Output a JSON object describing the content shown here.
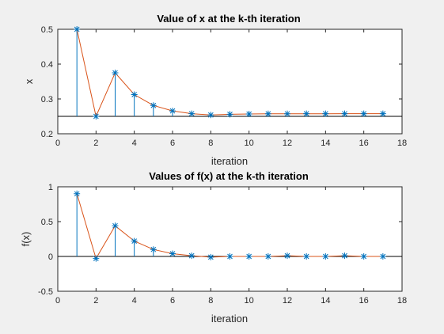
{
  "chart_data": [
    {
      "type": "line",
      "title": "Value of x at the k-th iteration",
      "xlabel": "iteration",
      "ylabel": "x",
      "xlim": [
        0,
        18
      ],
      "ylim": [
        0.2,
        0.5
      ],
      "xticks": [
        0,
        2,
        4,
        6,
        8,
        10,
        12,
        14,
        16,
        18
      ],
      "yticks": [
        0.2,
        0.3,
        0.4,
        0.5
      ],
      "ytick_labels": [
        "0.2",
        "0.3",
        "0.4",
        "0.5"
      ],
      "grid": false,
      "x": [
        1,
        2,
        3,
        4,
        5,
        6,
        7,
        8,
        9,
        10,
        11,
        12,
        13,
        14,
        15,
        16,
        17
      ],
      "series": [
        {
          "style": "stem",
          "marker": "*",
          "baseline": 0.25,
          "values": [
            0.5,
            0.25,
            0.375,
            0.3125,
            0.2813,
            0.2656,
            0.2578,
            0.2539,
            0.2559,
            0.2568,
            0.2573,
            0.2575,
            0.2576,
            0.2576,
            0.2577,
            0.2577,
            0.2577
          ]
        },
        {
          "style": "line",
          "values": [
            0.5,
            0.25,
            0.375,
            0.3125,
            0.2813,
            0.2656,
            0.2578,
            0.2539,
            0.2559,
            0.2568,
            0.2573,
            0.2575,
            0.2576,
            0.2576,
            0.2577,
            0.2577,
            0.2577
          ]
        }
      ],
      "reference_line": {
        "y": 0.25
      }
    },
    {
      "type": "line",
      "title": "Values of f(x) at the k-th iteration",
      "xlabel": "iteration",
      "ylabel": "f(x)",
      "xlim": [
        0,
        18
      ],
      "ylim": [
        -0.5,
        1
      ],
      "xticks": [
        0,
        2,
        4,
        6,
        8,
        10,
        12,
        14,
        16,
        18
      ],
      "yticks": [
        -0.5,
        0,
        0.5,
        1
      ],
      "ytick_labels": [
        "-0.5",
        "0",
        "0.5",
        "1"
      ],
      "grid": false,
      "x": [
        1,
        2,
        3,
        4,
        5,
        6,
        7,
        8,
        9,
        10,
        11,
        12,
        13,
        14,
        15,
        16,
        17
      ],
      "series": [
        {
          "style": "stem",
          "marker": "*",
          "baseline": 0,
          "values": [
            0.9,
            -0.03,
            0.44,
            0.22,
            0.1,
            0.04,
            0.01,
            -0.01,
            0.0,
            0.0,
            0.0,
            0.01,
            0.0,
            0.0,
            0.01,
            0.0,
            0.0
          ]
        },
        {
          "style": "line",
          "values": [
            0.9,
            -0.03,
            0.44,
            0.22,
            0.1,
            0.04,
            0.01,
            -0.01,
            0.0,
            0.0,
            0.0,
            0.01,
            0.0,
            0.0,
            0.01,
            0.0,
            0.0
          ]
        }
      ],
      "reference_line": {
        "y": 0
      }
    }
  ],
  "colors": {
    "stem": "#0072bd",
    "line": "#d95319",
    "axes": "#262626",
    "background": "#f0f0f0",
    "plot_area": "#ffffff"
  }
}
